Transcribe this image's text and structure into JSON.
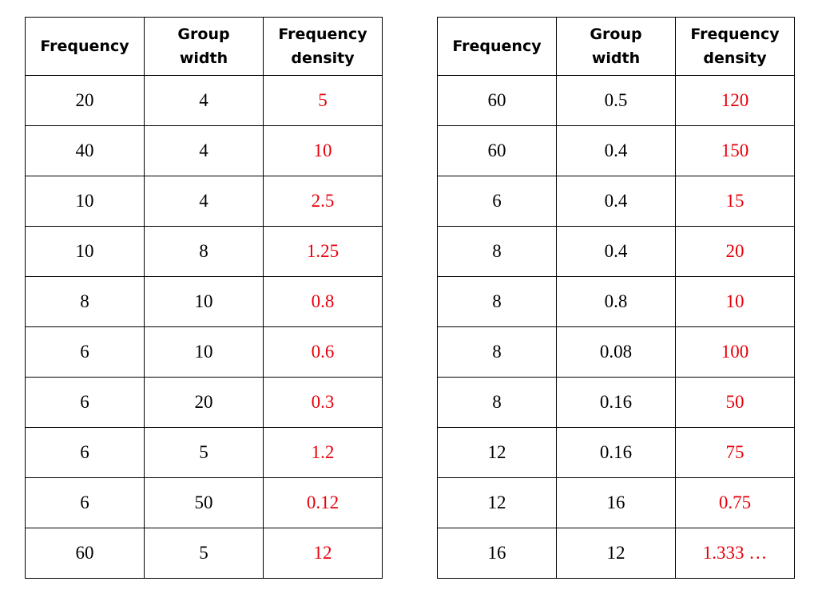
{
  "headers": {
    "frequency": "Frequency",
    "group_width": [
      "Group",
      "width"
    ],
    "frequency_density": [
      "Frequency",
      "density"
    ]
  },
  "colors": {
    "text": "#000000",
    "density_text": "#e8000b",
    "border": "#000000"
  },
  "tables": [
    {
      "rows": [
        {
          "frequency": "20",
          "group_width": "4",
          "frequency_density": "5"
        },
        {
          "frequency": "40",
          "group_width": "4",
          "frequency_density": "10"
        },
        {
          "frequency": "10",
          "group_width": "4",
          "frequency_density": "2.5"
        },
        {
          "frequency": "10",
          "group_width": "8",
          "frequency_density": "1.25"
        },
        {
          "frequency": "8",
          "group_width": "10",
          "frequency_density": "0.8"
        },
        {
          "frequency": "6",
          "group_width": "10",
          "frequency_density": "0.6"
        },
        {
          "frequency": "6",
          "group_width": "20",
          "frequency_density": "0.3"
        },
        {
          "frequency": "6",
          "group_width": "5",
          "frequency_density": "1.2"
        },
        {
          "frequency": "6",
          "group_width": "50",
          "frequency_density": "0.12"
        },
        {
          "frequency": "60",
          "group_width": "5",
          "frequency_density": "12"
        }
      ]
    },
    {
      "rows": [
        {
          "frequency": "60",
          "group_width": "0.5",
          "frequency_density": "120"
        },
        {
          "frequency": "60",
          "group_width": "0.4",
          "frequency_density": "150"
        },
        {
          "frequency": "6",
          "group_width": "0.4",
          "frequency_density": "15"
        },
        {
          "frequency": "8",
          "group_width": "0.4",
          "frequency_density": "20"
        },
        {
          "frequency": "8",
          "group_width": "0.8",
          "frequency_density": "10"
        },
        {
          "frequency": "8",
          "group_width": "0.08",
          "frequency_density": "100"
        },
        {
          "frequency": "8",
          "group_width": "0.16",
          "frequency_density": "50"
        },
        {
          "frequency": "12",
          "group_width": "0.16",
          "frequency_density": "75"
        },
        {
          "frequency": "12",
          "group_width": "16",
          "frequency_density": "0.75"
        },
        {
          "frequency": "16",
          "group_width": "12",
          "frequency_density": "1.333 …"
        }
      ]
    }
  ]
}
